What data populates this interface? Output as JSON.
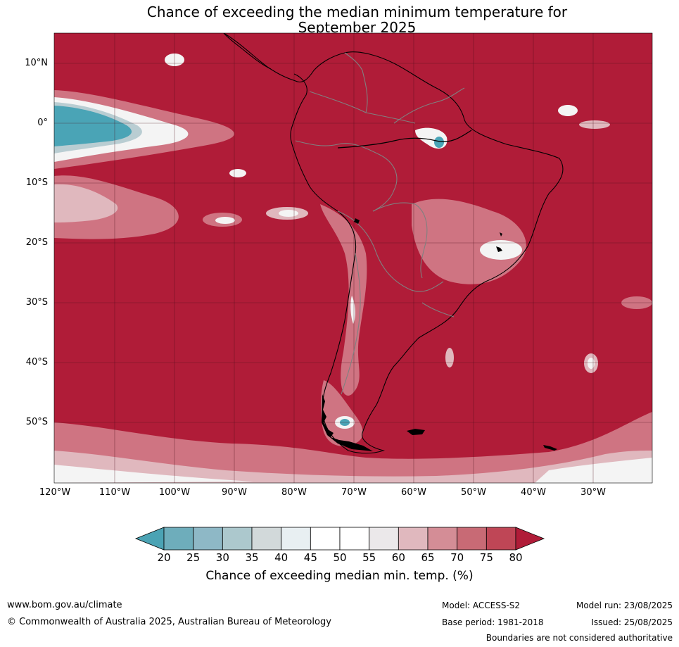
{
  "title_line1": "Chance of exceeding the median minimum temperature for",
  "title_line2": "September 2025",
  "lat_labels": [
    "10°N",
    "0°",
    "10°S",
    "20°S",
    "30°S",
    "40°S",
    "50°S"
  ],
  "lon_labels": [
    "120°W",
    "110°W",
    "100°W",
    "90°W",
    "80°W",
    "70°W",
    "60°W",
    "50°W",
    "40°W",
    "30°W"
  ],
  "colorbar": {
    "ticks": [
      "20",
      "25",
      "30",
      "35",
      "40",
      "45",
      "50",
      "55",
      "60",
      "65",
      "70",
      "75",
      "80"
    ],
    "colors": [
      "#4ba3b4",
      "#6eadbb",
      "#8eb8c6",
      "#acc8cd",
      "#d2d9da",
      "#e8eff2",
      "#ffffff",
      "#ffffff",
      "#ebe8ea",
      "#e0b8be",
      "#d48d96",
      "#c86a75",
      "#bf4656"
    ],
    "under_color": "#4ba3b4",
    "over_color": "#b01c38",
    "label": "Chance of exceeding median min. temp. (%)"
  },
  "map_colors": {
    "base": "#b01c38",
    "band_75": "#c24a5a",
    "band_70": "#cf7482",
    "band_60": "#e0b8be",
    "band_white": "#f4f4f4",
    "band_40": "#b9cdd2",
    "band_25": "#4aa4b6"
  },
  "footer": {
    "website": "www.bom.gov.au/climate",
    "copyright": "© Commonwealth of Australia 2025, Australian Bureau of Meteorology",
    "model": "Model: ACCESS-S2",
    "base_period": "Base period: 1981-2018",
    "model_run": "Model run: 23/08/2025",
    "issued": "Issued: 25/08/2025",
    "disclaimer": "Boundaries are not considered authoritative"
  }
}
